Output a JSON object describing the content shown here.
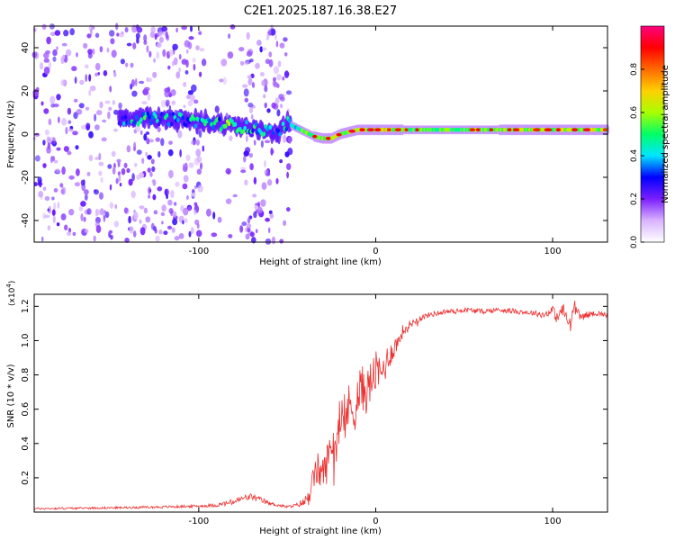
{
  "title": "C2E1.2025.187.16.38.E27",
  "chart_data": [
    {
      "type": "heatmap",
      "xlabel": "Height of straight line (km)",
      "ylabel": "Frequency (Hz)",
      "xlim": [
        -193,
        131
      ],
      "ylim": [
        -50,
        50
      ],
      "xticks": [
        -100,
        0,
        100
      ],
      "xtick_labels": [
        "-100",
        "0",
        "100"
      ],
      "yticks": [
        -40,
        -20,
        0,
        20,
        40
      ],
      "ytick_labels": [
        "-40",
        "-20",
        "0",
        "20",
        "40"
      ],
      "colorbar": {
        "label": "Normalized spectral amplitude",
        "range": [
          0,
          1
        ],
        "ticks": [
          0.0,
          0.2,
          0.4,
          0.6,
          0.8
        ],
        "tick_labels": [
          "0.0",
          "0.2",
          "0.4",
          "0.6",
          "0.8"
        ],
        "colormap": [
          "#ffffff",
          "#d9b3ff",
          "#7b1fff",
          "#0000ff",
          "#00e5ff",
          "#00ff66",
          "#a8ff00",
          "#ffd000",
          "#ff6a00",
          "#ff0000",
          "#ff0080"
        ]
      },
      "ridge": {
        "x": [
          -145,
          -130,
          -115,
          -100,
          -90,
          -80,
          -72,
          -65,
          -55,
          -50,
          -45,
          -40,
          -35,
          -30,
          -25,
          -20,
          -15,
          -10,
          0,
          10,
          20,
          40,
          60,
          80,
          100,
          120,
          131
        ],
        "y": [
          7,
          7,
          7,
          6,
          5,
          4,
          3,
          2,
          1,
          5,
          3,
          1,
          -1,
          -2,
          -2,
          0,
          1,
          2,
          2,
          2,
          2,
          2,
          2,
          2,
          2,
          2,
          2
        ],
        "amplitude": [
          0.4,
          0.5,
          0.45,
          0.5,
          0.55,
          0.6,
          0.55,
          0.5,
          0.3,
          0.55,
          0.65,
          0.8,
          0.85,
          0.9,
          0.88,
          0.9,
          0.92,
          0.95,
          0.95,
          0.9,
          0.8,
          0.75,
          0.8,
          0.9,
          0.85,
          0.9,
          0.88
        ]
      },
      "noise_regions": [
        {
          "x": [
            -193,
            -97
          ],
          "density": 0.55
        },
        {
          "x": [
            -97,
            -75
          ],
          "density": 0.12
        },
        {
          "x": [
            -75,
            -48
          ],
          "density": 0.55
        },
        {
          "x": [
            -48,
            131
          ],
          "density": 0.0
        }
      ]
    },
    {
      "type": "line",
      "xlabel": "Height of straight line (km)",
      "ylabel": "SNR (10 * v/v)",
      "multiplier_label": "(x10",
      "multiplier_exp": "4",
      "xlim": [
        -193,
        131
      ],
      "ylim": [
        0,
        1.27
      ],
      "xticks": [
        -100,
        0,
        100
      ],
      "xtick_labels": [
        "-100",
        "0",
        "100"
      ],
      "yticks": [
        0.2,
        0.4,
        0.6,
        0.8,
        1.0,
        1.2
      ],
      "ytick_labels": [
        "0.2",
        "0.4",
        "0.6",
        "0.8",
        "1.0",
        "1.2"
      ],
      "color": "#ee3030",
      "series": [
        {
          "x": [
            -193,
            -150,
            -120,
            -100,
            -90,
            -80,
            -75,
            -70,
            -65,
            -60,
            -50,
            -45,
            -40,
            -37,
            -35,
            -33,
            -30,
            -27,
            -25,
            -23,
            -20,
            -17,
            -15,
            -12,
            -10,
            -8,
            -5,
            -2,
            0,
            3,
            5,
            8,
            10,
            13,
            15,
            18,
            20,
            23,
            25,
            30,
            35,
            40,
            45,
            50,
            60,
            70,
            80,
            90,
            95,
            100,
            103,
            105,
            108,
            110,
            112,
            115,
            120,
            125,
            131
          ],
          "y": [
            0.02,
            0.025,
            0.03,
            0.035,
            0.04,
            0.06,
            0.08,
            0.09,
            0.07,
            0.05,
            0.03,
            0.04,
            0.06,
            0.12,
            0.2,
            0.25,
            0.22,
            0.3,
            0.42,
            0.38,
            0.5,
            0.55,
            0.62,
            0.6,
            0.68,
            0.72,
            0.7,
            0.78,
            0.82,
            0.8,
            0.85,
            0.92,
            0.95,
            1.0,
            1.05,
            1.08,
            1.1,
            1.12,
            1.13,
            1.15,
            1.16,
            1.17,
            1.17,
            1.18,
            1.17,
            1.18,
            1.17,
            1.16,
            1.15,
            1.18,
            1.12,
            1.19,
            1.13,
            1.08,
            1.21,
            1.14,
            1.15,
            1.16,
            1.15
          ],
          "noise_amplitude": [
            0.006,
            0.006,
            0.007,
            0.008,
            0.01,
            0.02,
            0.02,
            0.02,
            0.02,
            0.01,
            0.008,
            0.01,
            0.03,
            0.06,
            0.08,
            0.1,
            0.1,
            0.12,
            0.12,
            0.12,
            0.13,
            0.14,
            0.14,
            0.14,
            0.14,
            0.14,
            0.13,
            0.13,
            0.12,
            0.11,
            0.1,
            0.08,
            0.06,
            0.05,
            0.04,
            0.03,
            0.025,
            0.02,
            0.02,
            0.015,
            0.015,
            0.015,
            0.015,
            0.015,
            0.015,
            0.015,
            0.015,
            0.015,
            0.02,
            0.025,
            0.04,
            0.05,
            0.05,
            0.05,
            0.04,
            0.03,
            0.02,
            0.015,
            0.015
          ]
        }
      ]
    }
  ]
}
